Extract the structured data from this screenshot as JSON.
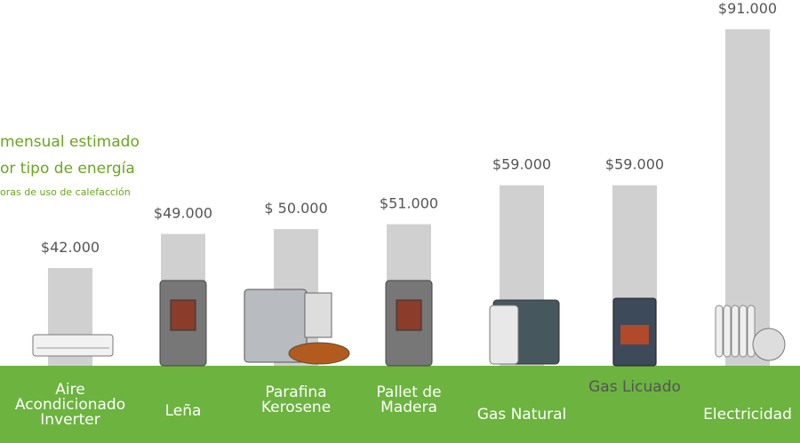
{
  "chart_data": {
    "type": "bar",
    "title": "mensual estimado",
    "subtitle": "or tipo de energía",
    "note": "oras de uso de calefacción",
    "categories": [
      "Aire\nAcondicionado\nInverter",
      "Leña",
      "Parafina\nKerosene",
      "Pallet de\nMadera",
      "Gas Natural",
      "Gas Licuado",
      "Electricidad"
    ],
    "values": [
      42000,
      49000,
      50000,
      51000,
      59000,
      59000,
      91000
    ],
    "value_labels": [
      "$42.000",
      "$49.000",
      "$ 50.000",
      "$51.000",
      "$59.000",
      "$59.000",
      "$91.000"
    ],
    "color": "#d0d0d0",
    "ground_color": "#6cb33f"
  }
}
